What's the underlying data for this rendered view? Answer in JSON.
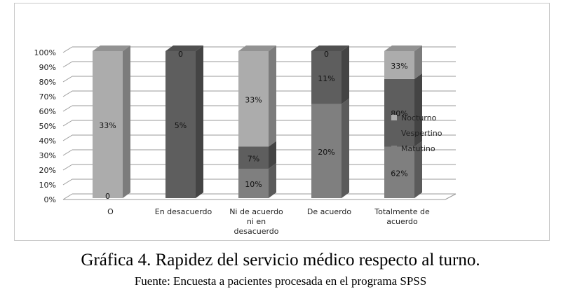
{
  "chart_data": {
    "type": "bar",
    "stacked": "100%",
    "title": "",
    "xlabel": "",
    "ylabel": "",
    "ylim": [
      0,
      100
    ],
    "yticks": [
      "0%",
      "10%",
      "20%",
      "30%",
      "40%",
      "50%",
      "60%",
      "70%",
      "80%",
      "90%",
      "100%"
    ],
    "categories": [
      [
        "O"
      ],
      [
        "En desacuerdo"
      ],
      [
        "Ni de acuerdo",
        "ni en",
        "desacuerdo"
      ],
      [
        "De acuerdo"
      ],
      [
        "Totalmente de",
        "acuerdo"
      ]
    ],
    "legend_position": "right",
    "series": [
      {
        "name": "Matutino",
        "color": "#7f7f7f",
        "share_percent": [
          0,
          0,
          20,
          64,
          35
        ],
        "labels": [
          "0",
          "",
          "10%",
          "20%",
          "62%"
        ]
      },
      {
        "name": "Vespertino",
        "color": "#5e5e5e",
        "share_percent": [
          0,
          100,
          15,
          36,
          46
        ],
        "labels": [
          "",
          "5%",
          "7%",
          "11%",
          "80%"
        ]
      },
      {
        "name": "Nocturno",
        "color": "#acacac",
        "share_percent": [
          100,
          0,
          65,
          0,
          19
        ],
        "labels": [
          "33%",
          "0",
          "33%",
          "0",
          "33%"
        ]
      }
    ]
  },
  "caption": {
    "title": "Gráfica 4. Rapidez del servicio médico respecto al turno.",
    "source": "Fuente: Encuesta a pacientes procesada en el programa SPSS"
  }
}
